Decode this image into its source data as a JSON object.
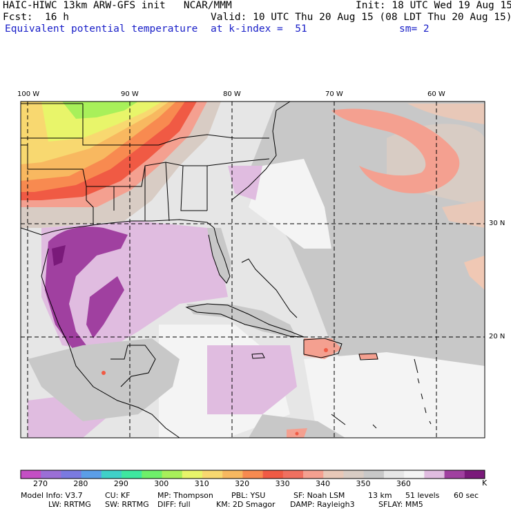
{
  "header": {
    "model": "HAIC-HIWC 13km ARW-GFS init   NCAR/MMM",
    "init": "Init: 18 UTC Wed 19 Aug 15",
    "fcst_label": "Fcst:",
    "fcst_value": "16 h",
    "valid": "Valid: 10 UTC Thu 20 Aug 15 (08 LDT Thu 20 Aug 15)",
    "field": "Equivalent potential temperature",
    "level": "at k-index =  51",
    "smoothing": "sm= 2"
  },
  "map": {
    "lon_labels": [
      "100 W",
      "90 W",
      "80 W",
      "70 W",
      "60 W"
    ],
    "lat_labels": [
      "30 N",
      "20 N"
    ]
  },
  "colorbar": {
    "unit": "K",
    "tick_labels": [
      "270",
      "280",
      "290",
      "300",
      "310",
      "320",
      "330",
      "340",
      "350",
      "360"
    ],
    "colors": [
      "#c44fc4",
      "#9b6fd6",
      "#7a7ae0",
      "#5b9ee8",
      "#3fd0c8",
      "#3ee8a0",
      "#6ef06a",
      "#a8f05a",
      "#e8f56a",
      "#f8d870",
      "#f8b860",
      "#f88a50",
      "#f05a44",
      "#f07060",
      "#f4a090",
      "#e8c8b8",
      "#d8ccc4",
      "#c8c8c8",
      "#e6e6e6",
      "#f4f4f4",
      "#e0bce0",
      "#a040a0",
      "#7a1a7a"
    ]
  },
  "footer": {
    "line1": [
      "Model Info: V3.7",
      "CU: KF",
      "MP: Thompson",
      "PBL: YSU",
      "SF: Noah LSM",
      "13 km",
      "51 levels",
      "60 sec"
    ],
    "line2": [
      "LW: RRTMG",
      "SW: RRTMG",
      "DIFF: full",
      "KM: 2D Smagor",
      "DAMP: Rayleigh3",
      "SFLAY: MM5"
    ]
  }
}
